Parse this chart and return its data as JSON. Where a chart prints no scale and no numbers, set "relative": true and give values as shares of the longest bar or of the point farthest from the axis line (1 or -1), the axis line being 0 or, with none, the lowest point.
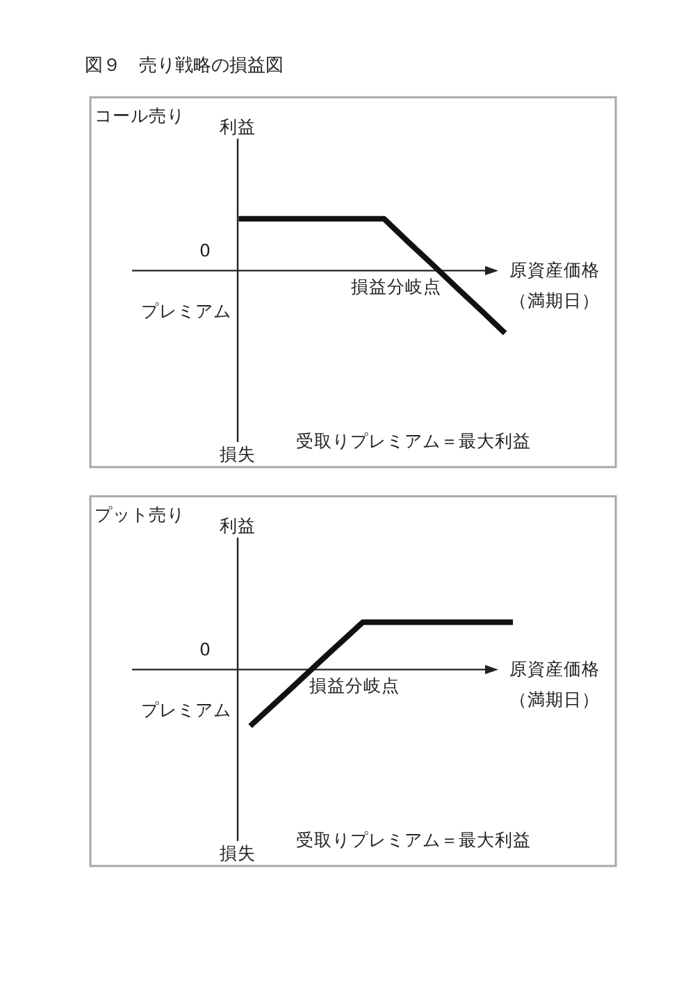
{
  "chart_data": [
    {
      "type": "line",
      "title": "図９　売り戦略の損益図",
      "subtitle": "コール売り",
      "ylabel": "利益",
      "xlabel": "原資産価格（満期日）",
      "relative": true,
      "categories": [
        null,
        null,
        null,
        null,
        null,
        null,
        null,
        null,
        null,
        null,
        null,
        null
      ],
      "series": [
        {
          "color": "#111111",
          "values": [
            0.83,
            0.83,
            0.83,
            0.83,
            0.83,
            0.83,
            0.83,
            0.46,
            0.1,
            -0.27,
            -0.63,
            -1
          ]
        }
      ],
      "annotations": [
        "損失",
        "0",
        "プレミアム",
        "損益分岐点",
        "受取りプレミアム＝最大利益"
      ]
    },
    {
      "type": "line",
      "subtitle": "プット売り",
      "ylabel": "利益",
      "xlabel": "原資産価格（満期日）",
      "relative": true,
      "categories": [
        null,
        null,
        null,
        null,
        null,
        null,
        null,
        null
      ],
      "series": [
        {
          "color": "#111111",
          "values": [
            -1,
            -0.39,
            0.23,
            0.84,
            0.84,
            0.84,
            0.84,
            0.84
          ]
        }
      ],
      "annotations": [
        "損失",
        "0",
        "プレミアム",
        "損益分岐点",
        "受取りプレミアム＝最大利益"
      ]
    }
  ]
}
